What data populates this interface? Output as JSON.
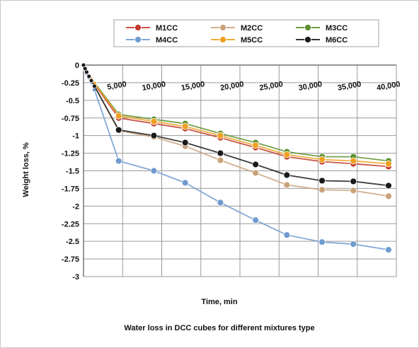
{
  "chart_data": {
    "type": "line",
    "title": "",
    "caption": "Water loss in DCC  cubes for different mixtures type",
    "xlabel": "Time, min",
    "ylabel": "Weight loss, %",
    "xlim": [
      0,
      40000
    ],
    "ylim": [
      -3,
      0
    ],
    "xticks": [
      5000,
      10000,
      15000,
      20000,
      25000,
      30000,
      35000,
      40000
    ],
    "xtick_labels": [
      "5,000",
      "10,000",
      "15,000",
      "20,000",
      "25,000",
      "30,000",
      "35,000",
      "40,000"
    ],
    "yticks": [
      0,
      -0.25,
      -0.5,
      -0.75,
      -1,
      -1.25,
      -1.5,
      -1.75,
      -2,
      -2.25,
      -2.5,
      -2.75,
      -3
    ],
    "ytick_labels": [
      "0",
      "-0.25",
      "-0.5",
      "-0.75",
      "-1",
      "-1.25",
      "-1.5",
      "-1.75",
      "-2",
      "-2.25",
      "-2.5",
      "-2.75",
      "-3"
    ],
    "grid": true,
    "legend_position": "top",
    "x": [
      0,
      200,
      400,
      700,
      1000,
      1400,
      4500,
      9000,
      13000,
      17500,
      22000,
      26000,
      30500,
      34500,
      39000
    ],
    "series": [
      {
        "name": "M1CC",
        "color": "#c0392b",
        "values": [
          0,
          -0.05,
          -0.1,
          -0.15,
          -0.2,
          -0.27,
          -0.75,
          -0.83,
          -0.9,
          -1.03,
          -1.17,
          -1.3,
          -1.37,
          -1.4,
          -1.44
        ]
      },
      {
        "name": "M2CC",
        "color": "#c9a27a",
        "values": [
          0,
          -0.05,
          -0.1,
          -0.16,
          -0.22,
          -0.3,
          -0.93,
          -1.02,
          -1.15,
          -1.35,
          -1.53,
          -1.7,
          -1.77,
          -1.78,
          -1.86
        ]
      },
      {
        "name": "M3CC",
        "color": "#5c8f2f",
        "values": [
          0,
          -0.05,
          -0.1,
          -0.15,
          -0.2,
          -0.25,
          -0.7,
          -0.77,
          -0.83,
          -0.97,
          -1.1,
          -1.23,
          -1.3,
          -1.3,
          -1.36
        ]
      },
      {
        "name": "M4CC",
        "color": "#6f9bd1",
        "values": [
          0,
          -0.06,
          -0.12,
          -0.18,
          -0.24,
          -0.35,
          -1.36,
          -1.5,
          -1.67,
          -1.95,
          -2.2,
          -2.41,
          -2.51,
          -2.54,
          -2.62
        ]
      },
      {
        "name": "M5CC",
        "color": "#f0a020",
        "values": [
          0,
          -0.05,
          -0.1,
          -0.15,
          -0.2,
          -0.26,
          -0.72,
          -0.8,
          -0.87,
          -1.0,
          -1.14,
          -1.27,
          -1.34,
          -1.36,
          -1.4
        ]
      },
      {
        "name": "M6CC",
        "color": "#1a1a1a",
        "values": [
          0,
          -0.05,
          -0.1,
          -0.16,
          -0.22,
          -0.3,
          -0.92,
          -1.0,
          -1.1,
          -1.25,
          -1.41,
          -1.56,
          -1.64,
          -1.65,
          -1.71
        ]
      }
    ]
  }
}
